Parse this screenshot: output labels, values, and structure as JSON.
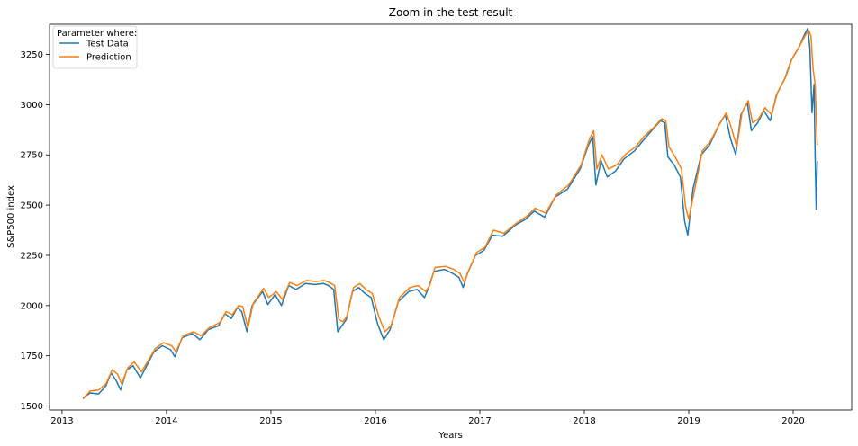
{
  "chart_data": {
    "type": "line",
    "title": "Zoom in the test result",
    "xlabel": "Years",
    "ylabel": "S&P500 index",
    "xlim": [
      2012.88,
      2020.56
    ],
    "ylim": [
      1480,
      3400
    ],
    "x_ticks": [
      2013,
      2014,
      2015,
      2016,
      2017,
      2018,
      2019,
      2020
    ],
    "x_tick_labels": [
      "2013",
      "2014",
      "2015",
      "2016",
      "2017",
      "2018",
      "2019",
      "2020"
    ],
    "y_ticks": [
      1500,
      1750,
      2000,
      2250,
      2500,
      2750,
      3000,
      3250
    ],
    "y_tick_labels": [
      "1500",
      "1750",
      "2000",
      "2250",
      "2500",
      "2750",
      "3000",
      "3250"
    ],
    "grid": false,
    "legend": {
      "title": "Parameter where:",
      "placement": "top-left"
    },
    "series": [
      {
        "name": "Test Data",
        "color": "#1f77b4",
        "points": [
          [
            2013.2,
            1540
          ],
          [
            2013.27,
            1565
          ],
          [
            2013.35,
            1560
          ],
          [
            2013.42,
            1600
          ],
          [
            2013.47,
            1665
          ],
          [
            2013.52,
            1625
          ],
          [
            2013.56,
            1580
          ],
          [
            2013.62,
            1680
          ],
          [
            2013.68,
            1700
          ],
          [
            2013.75,
            1640
          ],
          [
            2013.82,
            1710
          ],
          [
            2013.88,
            1770
          ],
          [
            2013.96,
            1800
          ],
          [
            2014.04,
            1780
          ],
          [
            2014.08,
            1745
          ],
          [
            2014.15,
            1840
          ],
          [
            2014.25,
            1860
          ],
          [
            2014.32,
            1830
          ],
          [
            2014.4,
            1880
          ],
          [
            2014.5,
            1900
          ],
          [
            2014.56,
            1960
          ],
          [
            2014.62,
            1935
          ],
          [
            2014.68,
            1990
          ],
          [
            2014.72,
            1970
          ],
          [
            2014.77,
            1870
          ],
          [
            2014.82,
            2000
          ],
          [
            2014.92,
            2070
          ],
          [
            2014.97,
            2005
          ],
          [
            2015.04,
            2055
          ],
          [
            2015.1,
            2000
          ],
          [
            2015.17,
            2100
          ],
          [
            2015.24,
            2080
          ],
          [
            2015.33,
            2110
          ],
          [
            2015.42,
            2105
          ],
          [
            2015.5,
            2110
          ],
          [
            2015.55,
            2100
          ],
          [
            2015.6,
            2080
          ],
          [
            2015.64,
            1870
          ],
          [
            2015.68,
            1900
          ],
          [
            2015.72,
            1930
          ],
          [
            2015.78,
            2070
          ],
          [
            2015.84,
            2090
          ],
          [
            2015.9,
            2060
          ],
          [
            2015.96,
            2040
          ],
          [
            2016.02,
            1910
          ],
          [
            2016.08,
            1830
          ],
          [
            2016.14,
            1880
          ],
          [
            2016.22,
            2020
          ],
          [
            2016.32,
            2070
          ],
          [
            2016.4,
            2080
          ],
          [
            2016.47,
            2040
          ],
          [
            2016.51,
            2090
          ],
          [
            2016.56,
            2170
          ],
          [
            2016.66,
            2180
          ],
          [
            2016.74,
            2160
          ],
          [
            2016.8,
            2140
          ],
          [
            2016.84,
            2090
          ],
          [
            2016.88,
            2160
          ],
          [
            2016.96,
            2250
          ],
          [
            2017.04,
            2275
          ],
          [
            2017.12,
            2350
          ],
          [
            2017.22,
            2345
          ],
          [
            2017.34,
            2400
          ],
          [
            2017.44,
            2430
          ],
          [
            2017.52,
            2470
          ],
          [
            2017.62,
            2440
          ],
          [
            2017.72,
            2540
          ],
          [
            2017.84,
            2580
          ],
          [
            2017.96,
            2680
          ],
          [
            2018.04,
            2800
          ],
          [
            2018.08,
            2840
          ],
          [
            2018.11,
            2600
          ],
          [
            2018.16,
            2720
          ],
          [
            2018.22,
            2640
          ],
          [
            2018.3,
            2670
          ],
          [
            2018.38,
            2730
          ],
          [
            2018.48,
            2770
          ],
          [
            2018.56,
            2820
          ],
          [
            2018.66,
            2880
          ],
          [
            2018.73,
            2920
          ],
          [
            2018.77,
            2910
          ],
          [
            2018.8,
            2740
          ],
          [
            2018.86,
            2700
          ],
          [
            2018.92,
            2640
          ],
          [
            2018.96,
            2420
          ],
          [
            2018.99,
            2350
          ],
          [
            2019.04,
            2580
          ],
          [
            2019.12,
            2750
          ],
          [
            2019.2,
            2800
          ],
          [
            2019.29,
            2900
          ],
          [
            2019.35,
            2950
          ],
          [
            2019.4,
            2830
          ],
          [
            2019.45,
            2750
          ],
          [
            2019.5,
            2950
          ],
          [
            2019.56,
            3010
          ],
          [
            2019.6,
            2870
          ],
          [
            2019.66,
            2910
          ],
          [
            2019.72,
            2970
          ],
          [
            2019.78,
            2920
          ],
          [
            2019.84,
            3050
          ],
          [
            2019.92,
            3130
          ],
          [
            2019.98,
            3220
          ],
          [
            2020.06,
            3290
          ],
          [
            2020.1,
            3340
          ],
          [
            2020.14,
            3380
          ],
          [
            2020.16,
            3280
          ],
          [
            2020.18,
            2960
          ],
          [
            2020.2,
            3100
          ],
          [
            2020.21,
            2740
          ],
          [
            2020.22,
            2480
          ],
          [
            2020.23,
            2720
          ]
        ]
      },
      {
        "name": "Prediction",
        "color": "#ff7f0e",
        "points": [
          [
            2013.2,
            1535
          ],
          [
            2013.27,
            1575
          ],
          [
            2013.35,
            1580
          ],
          [
            2013.42,
            1610
          ],
          [
            2013.48,
            1680
          ],
          [
            2013.53,
            1660
          ],
          [
            2013.57,
            1610
          ],
          [
            2013.63,
            1690
          ],
          [
            2013.69,
            1720
          ],
          [
            2013.76,
            1670
          ],
          [
            2013.83,
            1730
          ],
          [
            2013.89,
            1785
          ],
          [
            2013.97,
            1815
          ],
          [
            2014.05,
            1800
          ],
          [
            2014.09,
            1770
          ],
          [
            2014.16,
            1850
          ],
          [
            2014.26,
            1870
          ],
          [
            2014.33,
            1850
          ],
          [
            2014.41,
            1890
          ],
          [
            2014.51,
            1915
          ],
          [
            2014.57,
            1970
          ],
          [
            2014.63,
            1955
          ],
          [
            2014.69,
            2000
          ],
          [
            2014.73,
            1995
          ],
          [
            2014.78,
            1890
          ],
          [
            2014.83,
            2010
          ],
          [
            2014.93,
            2085
          ],
          [
            2014.98,
            2040
          ],
          [
            2015.05,
            2070
          ],
          [
            2015.11,
            2030
          ],
          [
            2015.18,
            2115
          ],
          [
            2015.25,
            2100
          ],
          [
            2015.34,
            2125
          ],
          [
            2015.43,
            2120
          ],
          [
            2015.51,
            2125
          ],
          [
            2015.56,
            2115
          ],
          [
            2015.61,
            2100
          ],
          [
            2015.65,
            1930
          ],
          [
            2015.69,
            1920
          ],
          [
            2015.73,
            1950
          ],
          [
            2015.79,
            2090
          ],
          [
            2015.85,
            2110
          ],
          [
            2015.91,
            2080
          ],
          [
            2015.97,
            2060
          ],
          [
            2016.03,
            1950
          ],
          [
            2016.09,
            1870
          ],
          [
            2016.15,
            1900
          ],
          [
            2016.23,
            2040
          ],
          [
            2016.33,
            2090
          ],
          [
            2016.41,
            2100
          ],
          [
            2016.48,
            2070
          ],
          [
            2016.52,
            2100
          ],
          [
            2016.57,
            2190
          ],
          [
            2016.67,
            2195
          ],
          [
            2016.75,
            2180
          ],
          [
            2016.81,
            2160
          ],
          [
            2016.85,
            2115
          ],
          [
            2016.89,
            2170
          ],
          [
            2016.97,
            2265
          ],
          [
            2017.05,
            2290
          ],
          [
            2017.13,
            2375
          ],
          [
            2017.23,
            2360
          ],
          [
            2017.35,
            2410
          ],
          [
            2017.45,
            2445
          ],
          [
            2017.53,
            2485
          ],
          [
            2017.63,
            2460
          ],
          [
            2017.73,
            2550
          ],
          [
            2017.85,
            2600
          ],
          [
            2017.97,
            2700
          ],
          [
            2018.05,
            2830
          ],
          [
            2018.09,
            2870
          ],
          [
            2018.12,
            2680
          ],
          [
            2018.17,
            2750
          ],
          [
            2018.23,
            2680
          ],
          [
            2018.31,
            2700
          ],
          [
            2018.39,
            2750
          ],
          [
            2018.49,
            2790
          ],
          [
            2018.57,
            2840
          ],
          [
            2018.67,
            2890
          ],
          [
            2018.74,
            2930
          ],
          [
            2018.78,
            2920
          ],
          [
            2018.81,
            2790
          ],
          [
            2018.87,
            2740
          ],
          [
            2018.93,
            2680
          ],
          [
            2018.97,
            2490
          ],
          [
            2019.0,
            2430
          ],
          [
            2019.05,
            2560
          ],
          [
            2019.13,
            2770
          ],
          [
            2019.21,
            2820
          ],
          [
            2019.3,
            2910
          ],
          [
            2019.36,
            2960
          ],
          [
            2019.41,
            2880
          ],
          [
            2019.46,
            2790
          ],
          [
            2019.51,
            2960
          ],
          [
            2019.57,
            3020
          ],
          [
            2019.61,
            2910
          ],
          [
            2019.67,
            2930
          ],
          [
            2019.73,
            2985
          ],
          [
            2019.79,
            2950
          ],
          [
            2019.85,
            3060
          ],
          [
            2019.93,
            3140
          ],
          [
            2019.99,
            3230
          ],
          [
            2020.07,
            3300
          ],
          [
            2020.11,
            3340
          ],
          [
            2020.15,
            3370
          ],
          [
            2020.17,
            3340
          ],
          [
            2020.19,
            3180
          ],
          [
            2020.21,
            3100
          ],
          [
            2020.22,
            2950
          ],
          [
            2020.23,
            2800
          ]
        ]
      }
    ]
  }
}
